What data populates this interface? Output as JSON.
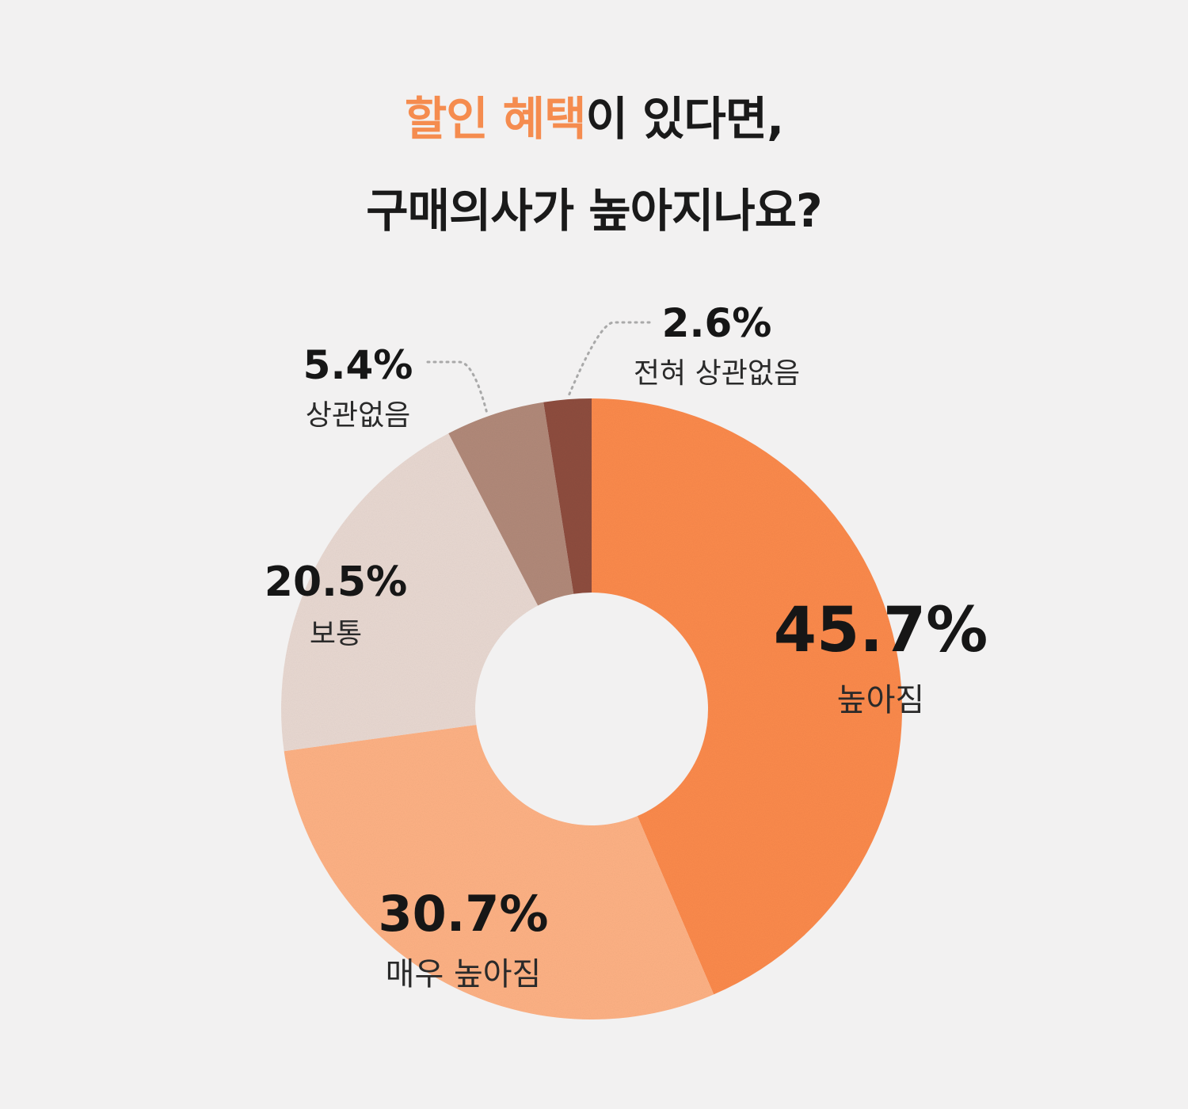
{
  "title": {
    "line1_accent": "할인 혜택",
    "line1_rest": "이 있다면,",
    "line2": "구매의사가 높아지나요?",
    "accent_color": "#f58c4f"
  },
  "chart_data": {
    "type": "pie",
    "donut": true,
    "unit": "%",
    "slices": [
      {
        "label": "높아짐",
        "value": 45.7,
        "display": "45.7%",
        "color": "#fb8a4c"
      },
      {
        "label": "매우 높아짐",
        "value": 30.7,
        "display": "30.7%",
        "color": "#fdb184"
      },
      {
        "label": "보통",
        "value": 20.5,
        "display": "20.5%",
        "color": "#e8d8d1"
      },
      {
        "label": "상관없음",
        "value": 5.4,
        "display": "5.4%",
        "color": "#b18979"
      },
      {
        "label": "전혀 상관없음",
        "value": 2.6,
        "display": "2.6%",
        "color": "#8e4d3f"
      }
    ]
  }
}
